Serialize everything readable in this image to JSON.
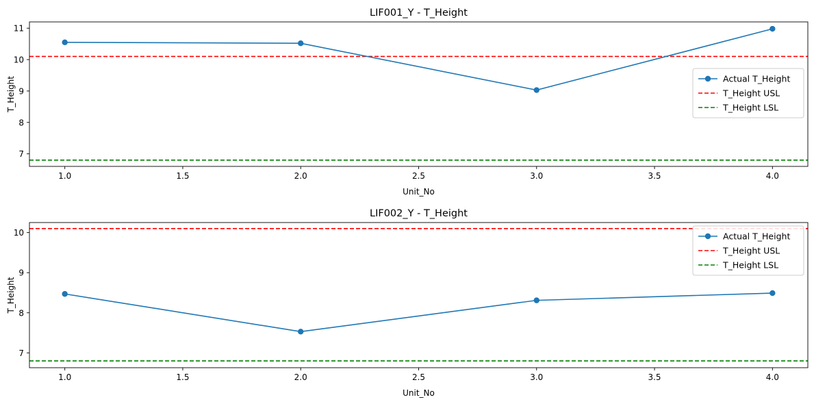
{
  "chart_data": [
    {
      "type": "line",
      "title": "LIF001_Y - T_Height",
      "xlabel": "Unit_No",
      "ylabel": "T_Height",
      "xlim": [
        0.85,
        4.15
      ],
      "ylim": [
        6.6,
        11.2
      ],
      "xticks": [
        "1.0",
        "1.5",
        "2.0",
        "2.5",
        "3.0",
        "3.5",
        "4.0"
      ],
      "yticks": [
        "7",
        "8",
        "9",
        "10",
        "11"
      ],
      "legend_position": "center-right",
      "series": [
        {
          "name": "Actual T_Height",
          "style": "solid-marker",
          "color": "#1f77b4",
          "x": [
            1,
            2,
            3,
            4
          ],
          "y": [
            10.55,
            10.52,
            9.03,
            10.98
          ]
        }
      ],
      "hlines": [
        {
          "name": "T_Height USL",
          "value": 10.1,
          "color": "#ff0000",
          "style": "dashed"
        },
        {
          "name": "T_Height LSL",
          "value": 6.8,
          "color": "#008000",
          "style": "dashed"
        }
      ]
    },
    {
      "type": "line",
      "title": "LIF002_Y - T_Height",
      "xlabel": "Unit_No",
      "ylabel": "T_Height",
      "xlim": [
        0.85,
        4.15
      ],
      "ylim": [
        6.63,
        10.25
      ],
      "xticks": [
        "1.0",
        "1.5",
        "2.0",
        "2.5",
        "3.0",
        "3.5",
        "4.0"
      ],
      "yticks": [
        "7",
        "8",
        "9",
        "10"
      ],
      "legend_position": "upper-right",
      "series": [
        {
          "name": "Actual T_Height",
          "style": "solid-marker",
          "color": "#1f77b4",
          "x": [
            1,
            2,
            3,
            4
          ],
          "y": [
            8.47,
            7.53,
            8.31,
            8.49
          ]
        }
      ],
      "hlines": [
        {
          "name": "T_Height USL",
          "value": 10.1,
          "color": "#ff0000",
          "style": "dashed"
        },
        {
          "name": "T_Height LSL",
          "value": 6.8,
          "color": "#008000",
          "style": "dashed"
        }
      ]
    }
  ]
}
